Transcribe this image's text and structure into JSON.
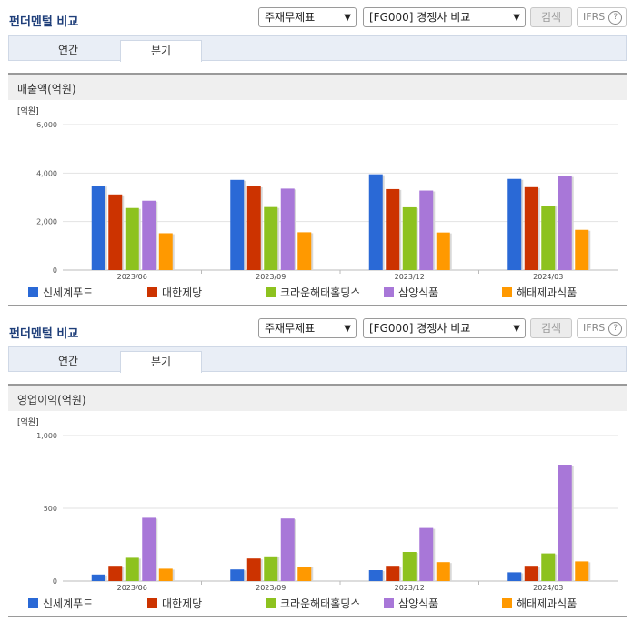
{
  "colors": {
    "series": [
      "#2a69d6",
      "#cc3300",
      "#8dc21f",
      "#a877d8",
      "#ff9900"
    ],
    "title": "#1f3f7a"
  },
  "sections": [
    {
      "title": "펀더멘털 비교",
      "select1": "주재무제표",
      "select2": "[FG000] 경쟁사 비교",
      "search_label": "검색",
      "ifrs_label": "IFRS",
      "help_label": "?",
      "tabs": [
        {
          "label": "연간"
        },
        {
          "label": "분기"
        }
      ],
      "active_tab": "분기",
      "metric_label": "매출액(억원)",
      "unit_label": "[억원]",
      "chart_data": {
        "type": "bar",
        "categories": [
          "2023/06",
          "2023/09",
          "2023/12",
          "2024/03"
        ],
        "series": [
          {
            "name": "신세계푸드",
            "values": [
              3480,
              3720,
              3950,
              3760
            ]
          },
          {
            "name": "대한제당",
            "values": [
              3120,
              3450,
              3340,
              3420
            ]
          },
          {
            "name": "크라운해태홀딩스",
            "values": [
              2560,
              2600,
              2590,
              2660
            ]
          },
          {
            "name": "삼양식품",
            "values": [
              2860,
              3360,
              3280,
              3880
            ]
          },
          {
            "name": "해태제과식품",
            "values": [
              1520,
              1560,
              1550,
              1660
            ]
          }
        ],
        "yticks": [
          "0",
          "2,000",
          "4,000",
          "6,000"
        ],
        "ylim": [
          0,
          6000
        ],
        "ylabel": "[억원]",
        "grid": true,
        "legend": "bottom"
      }
    },
    {
      "title": "펀더멘털 비교",
      "select1": "주재무제표",
      "select2": "[FG000] 경쟁사 비교",
      "search_label": "검색",
      "ifrs_label": "IFRS",
      "help_label": "?",
      "tabs": [
        {
          "label": "연간"
        },
        {
          "label": "분기"
        }
      ],
      "active_tab": "분기",
      "metric_label": "영업이익(억원)",
      "unit_label": "[억원]",
      "chart_data": {
        "type": "bar",
        "categories": [
          "2023/06",
          "2023/09",
          "2023/12",
          "2024/03"
        ],
        "series": [
          {
            "name": "신세계푸드",
            "values": [
              45,
              80,
              75,
              60
            ]
          },
          {
            "name": "대한제당",
            "values": [
              105,
              155,
              105,
              105
            ]
          },
          {
            "name": "크라운해태홀딩스",
            "values": [
              160,
              170,
              200,
              190
            ]
          },
          {
            "name": "삼양식품",
            "values": [
              435,
              430,
              365,
              800
            ]
          },
          {
            "name": "해태제과식품",
            "values": [
              85,
              100,
              130,
              135
            ]
          }
        ],
        "yticks": [
          "0",
          "500",
          "1,000"
        ],
        "ylim": [
          0,
          1000
        ],
        "ylabel": "[억원]",
        "grid": true,
        "legend": "bottom"
      }
    }
  ]
}
